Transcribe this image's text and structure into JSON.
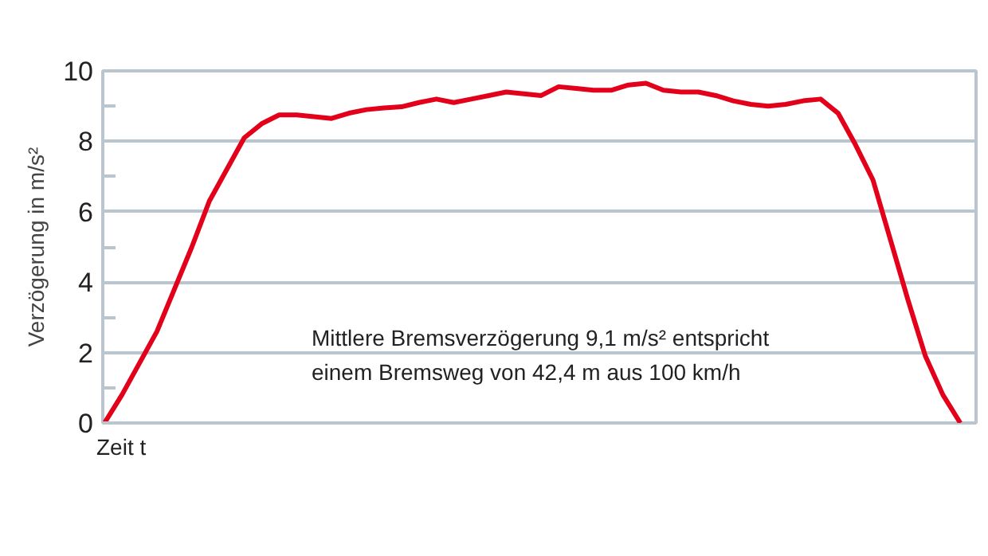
{
  "chart_data": {
    "type": "line",
    "ylabel": "Verzögerung in m/s²",
    "xlabel": "Zeit t",
    "categories": [
      null,
      null,
      null,
      null,
      null,
      null,
      null,
      null,
      null,
      null,
      null,
      null,
      null,
      null,
      null,
      null,
      null,
      null,
      null,
      null,
      null,
      null,
      null,
      null,
      null,
      null,
      null,
      null,
      null,
      null,
      null,
      null,
      null,
      null,
      null,
      null,
      null,
      null,
      null,
      null,
      null,
      null,
      null,
      null,
      null,
      null,
      null,
      null,
      null,
      null
    ],
    "series": [
      {
        "color": "#e2001a",
        "values": [
          0,
          0.8,
          1.7,
          2.6,
          3.8,
          5.0,
          6.3,
          7.2,
          8.1,
          8.5,
          8.75,
          8.75,
          8.7,
          8.65,
          8.8,
          8.9,
          8.95,
          8.98,
          9.1,
          9.2,
          9.1,
          9.2,
          9.3,
          9.4,
          9.35,
          9.3,
          9.55,
          9.5,
          9.45,
          9.45,
          9.6,
          9.65,
          9.45,
          9.4,
          9.4,
          9.3,
          9.15,
          9.05,
          9.0,
          9.05,
          9.15,
          9.2,
          8.8,
          7.9,
          6.9,
          5.2,
          3.5,
          1.9,
          0.8,
          0
        ]
      }
    ],
    "ylim": [
      0,
      10
    ],
    "yticks": [
      0,
      {
        "value": 1,
        "label": null
      },
      2,
      {
        "value": 3,
        "label": null
      },
      4,
      {
        "value": 5,
        "label": null
      },
      6,
      {
        "value": 7,
        "label": null
      },
      8,
      {
        "value": 9,
        "label": null
      },
      10
    ],
    "grid": "y",
    "tick_labels": "y",
    "marker": "none",
    "line_style": "solid",
    "annotations": [
      "Mittlere Bremsverzögerung 9,1 m/s² entspricht\neinem Bremsweg von 42,4 m aus 100 km/h"
    ]
  }
}
